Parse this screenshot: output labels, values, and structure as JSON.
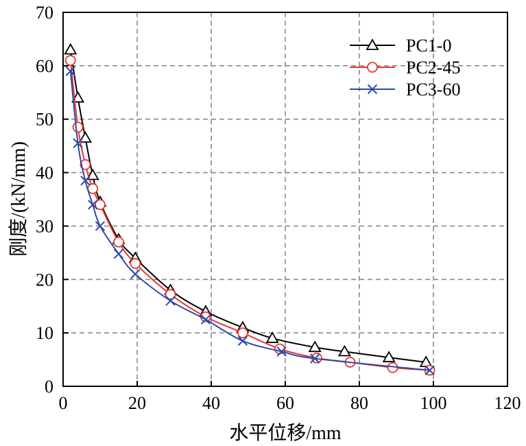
{
  "chart_data": {
    "type": "line",
    "title": "",
    "xlabel": "水平位移/mm",
    "ylabel": "刚度/(kN/mm)",
    "xlim": [
      0,
      120
    ],
    "ylim": [
      0,
      70
    ],
    "xticks": [
      0,
      20,
      40,
      60,
      80,
      100,
      120
    ],
    "yticks": [
      0,
      10,
      20,
      30,
      40,
      50,
      60,
      70
    ],
    "grid": true,
    "grid_style": "dashed",
    "legend_position": "top-right",
    "series": [
      {
        "name": "PC1-0",
        "color": "#000000",
        "marker": "triangle",
        "x": [
          2,
          4,
          6,
          8,
          10,
          15,
          19.5,
          29,
          38.5,
          48.5,
          56.5,
          68,
          76,
          88,
          98
        ],
        "y": [
          63,
          54,
          46.5,
          39.5,
          34.5,
          27.5,
          24,
          18,
          14,
          11,
          9,
          7.3,
          6.5,
          5.4,
          4.5
        ]
      },
      {
        "name": "PC2-45",
        "color": "#e8362b",
        "marker": "circle",
        "x": [
          2,
          4,
          6,
          8,
          10,
          15,
          19.5,
          29,
          38.5,
          48.5,
          58.5,
          68.5,
          77.5,
          89,
          99
        ],
        "y": [
          61,
          48.5,
          41.5,
          37,
          34,
          27,
          23,
          17.2,
          13,
          10,
          7,
          5.3,
          4.5,
          3.5,
          3
        ]
      },
      {
        "name": "PC3-60",
        "color": "#2b4aa8",
        "marker": "x",
        "x": [
          2,
          4,
          6,
          8,
          10,
          15,
          19.5,
          29,
          38.5,
          48.5,
          59,
          68,
          99
        ],
        "y": [
          59,
          45.5,
          38.5,
          34,
          30,
          24.8,
          21,
          16,
          12.5,
          8.5,
          6.5,
          5.2,
          3
        ]
      }
    ]
  }
}
